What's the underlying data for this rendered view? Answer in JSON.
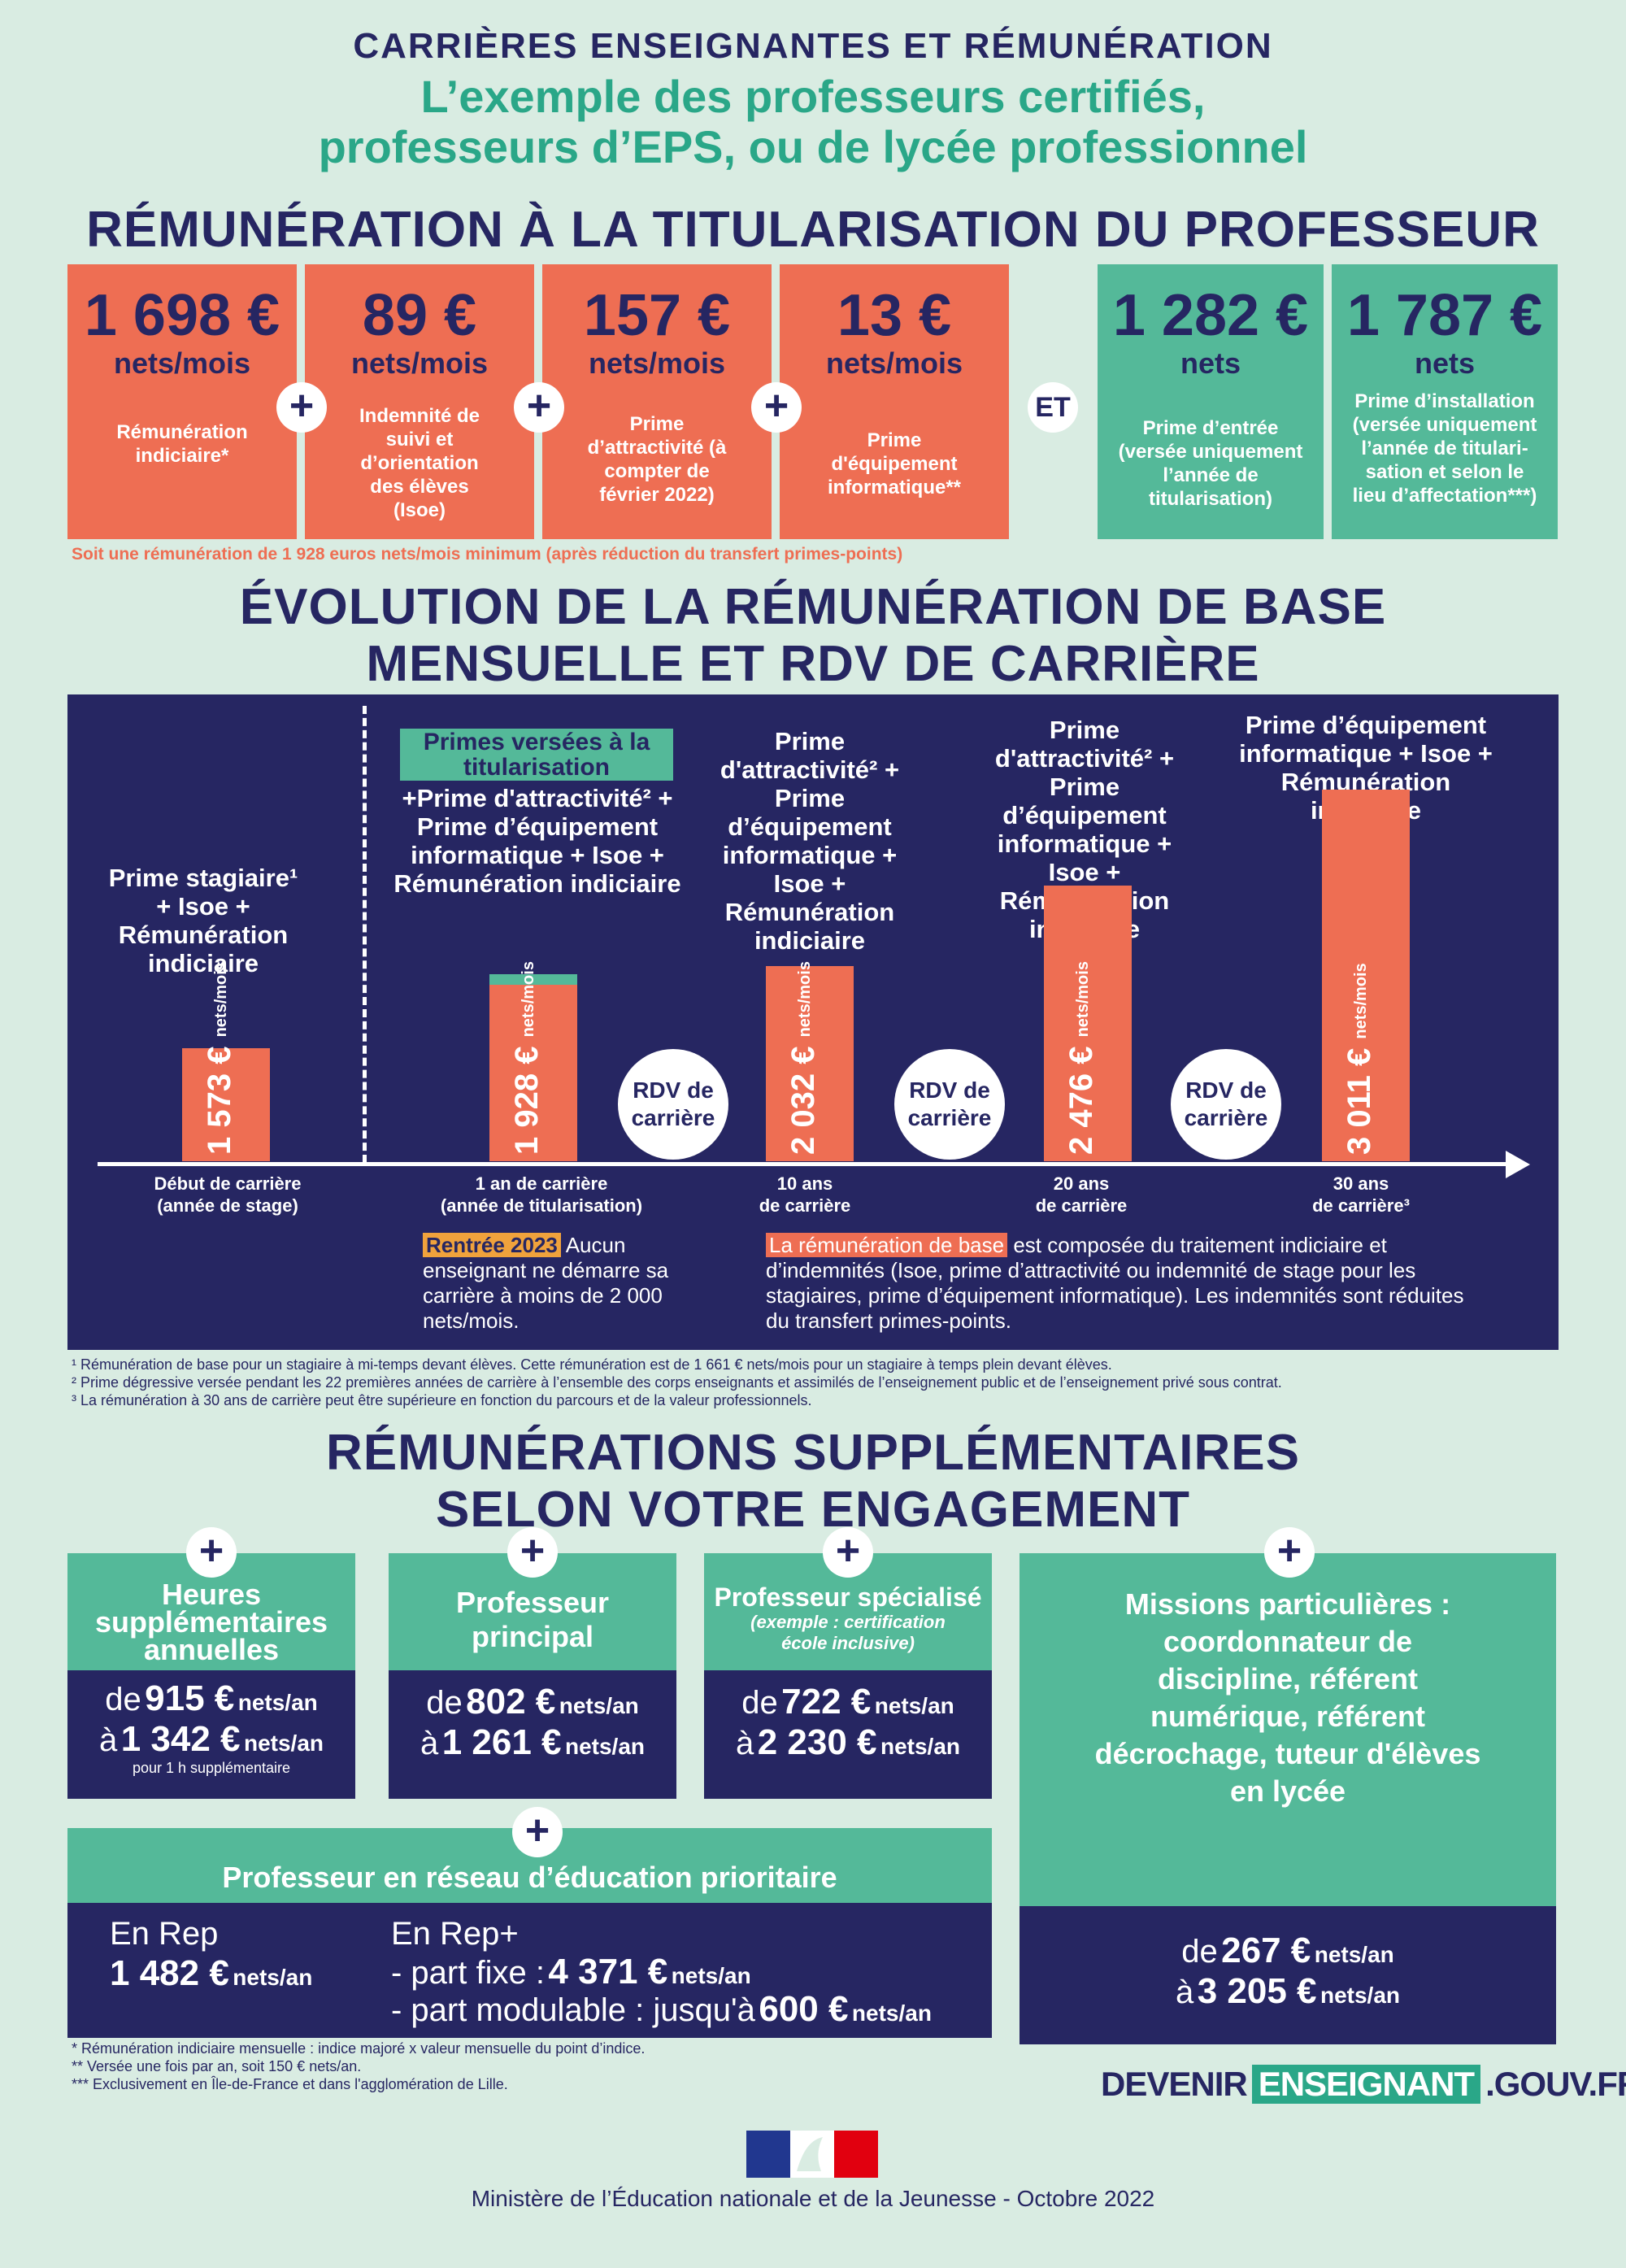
{
  "header": {
    "kicker": "CARRIÈRES ENSEIGNANTES ET RÉMUNÉRATION",
    "title_line1": "L’exemple des professeurs certifiés,",
    "title_line2": "professeurs d’EPS, ou de lycée professionnel"
  },
  "section1": {
    "title": "RÉMUNÉRATION À LA TITULARISATION DU PROFESSEUR",
    "boxes": [
      {
        "value": "1 698 €",
        "unit": "nets/mois",
        "desc": "Rémunération indiciaire*"
      },
      {
        "value": "89 €",
        "unit": "nets/mois",
        "desc": "Indemnité de suivi et d’orientation des élèves (Isoe)"
      },
      {
        "value": "157 €",
        "unit": "nets/mois",
        "desc": "Prime d’attractivité (à compter de février 2022)"
      },
      {
        "value": "13 €",
        "unit": "nets/mois",
        "desc": "Prime d'équipement informatique**"
      },
      {
        "value": "1 282 €",
        "unit": "nets",
        "desc": "Prime d’entrée (versée uniquement l’année de titularisation)"
      },
      {
        "value": "1 787 €",
        "unit": "nets",
        "desc": "Prime d’installation (versée uniquement l’année de titulari-sation et selon le lieu d’affectation***)"
      }
    ],
    "plus": "+",
    "et": "ET",
    "note": "Soit une rémunération de 1 928 euros nets/mois minimum (après réduction du transfert primes-points)"
  },
  "section2": {
    "title_line1": "ÉVOLUTION DE LA RÉMUNÉRATION DE BASE",
    "title_line2": "MENSUELLE ET RDV DE CARRIÈRE",
    "chart_data": {
      "type": "bar",
      "categories": [
        "Début de carrière (année de stage)",
        "1 an de carrière (année de titularisation)",
        "10 ans de carrière",
        "20 ans de carrière",
        "30 ans de carrière³"
      ],
      "values": [
        1573,
        1928,
        2032,
        2476,
        3011
      ],
      "value_labels": [
        "1 573 €",
        "1 928 €",
        "2 032 €",
        "2 476 €",
        "3 011 €"
      ],
      "unit": "nets/mois"
    },
    "bar_titles": [
      "Prime stagiaire¹ + Isoe + Rémunération indiciaire",
      "+Prime d'attractivité² + Prime d’équipement informatique + Isoe + Rémunération indiciaire",
      "Prime d'attractivité² + Prime d’équipement informatique + Isoe + Rémunération indiciaire",
      "Prime d'attractivité² + Prime d’équipement informatique + Isoe + Rémunération indiciaire",
      "Prime d’équipement informatique + Isoe + Rémunération indiciaire"
    ],
    "primes_tag": "Primes versées à la titularisation",
    "rdv": "RDV de carrière",
    "axis_labels": [
      "Début de carrière\n(année de stage)",
      "1 an de carrière\n(année de titularisation)",
      "10 ans\nde carrière",
      "20 ans\nde carrière",
      "30 ans\nde carrière³"
    ],
    "rentree_tag": "Rentrée 2023",
    "rentree_text": "Aucun enseignant ne démarre sa carrière à moins de 2 000 nets/mois.",
    "base_tag": "La rémunération de base",
    "base_text": "est composée du traitement indiciaire et d’indemnités (Isoe, prime d’attractivité ou indemnité de stage pour les stagiaires, prime d’équipement informatique). Les indemnités sont réduites du transfert primes-points.",
    "footnotes": [
      "¹ Rémunération de base pour un stagiaire à mi-temps devant élèves. Cette rémunération est de 1 661 € nets/mois pour un stagiaire à temps plein devant élèves.",
      "² Prime dégressive versée pendant les 22 premières années de carrière à l’ensemble des corps enseignants et assimilés de l’enseignement public et de l’enseignement privé sous contrat.",
      "³ La rémunération à 30 ans de carrière peut être supérieure en fonction du parcours et de la valeur professionnels."
    ]
  },
  "section3": {
    "title_line1": "RÉMUNÉRATIONS SUPPLÉMENTAIRES",
    "title_line2": "SELON VOTRE ENGAGEMENT",
    "cards": [
      {
        "title": "Heures supplémentaires annuelles",
        "from": "915 €",
        "to": "1 342 €",
        "unit": "nets/an",
        "note": "pour 1 h supplémentaire"
      },
      {
        "title": "Professeur principal",
        "from": "802 €",
        "to": "1 261 €",
        "unit": "nets/an"
      },
      {
        "title": "Professeur spécialisé",
        "subtitle": "(exemple : certification école inclusive)",
        "from": "722 €",
        "to": "2 230 €",
        "unit": "nets/an"
      },
      {
        "title": "Missions particulières : coordonnateur de discipline, référent numérique, référent décrochage, tuteur d'élèves en lycée",
        "from": "267 €",
        "to": "3 205 €",
        "unit": "nets/an"
      }
    ],
    "de": "de",
    "a": "à",
    "rep": {
      "title": "Professeur en réseau d’éducation prioritaire",
      "rep_label": "En Rep",
      "rep_value": "1 482 €",
      "repplus_label": "En Rep+",
      "fixe_label": "- part fixe :",
      "fixe_value": "4 371 €",
      "mod_label": "- part modulable : jusqu'à",
      "mod_value": "600 €",
      "unit": "nets/an"
    },
    "footnotes": [
      "* Rémunération indiciaire mensuelle : indice majoré x valeur mensuelle du point d’indice.",
      "** Versée une fois par an, soit 150 € nets/an.",
      "*** Exclusivement en Île-de-France et dans l'agglomération de Lille."
    ]
  },
  "brand": {
    "part1": "DEVENIR",
    "part2": "ENSEIGNANT",
    "part3": ".GOUV.FR"
  },
  "footer": "Ministère de l’Éducation nationale et de la Jeunesse - Octobre 2022",
  "colors": {
    "navy": "#262662",
    "orange": "#ee6e53",
    "green": "#54b999",
    "background": "#d9ece2"
  }
}
